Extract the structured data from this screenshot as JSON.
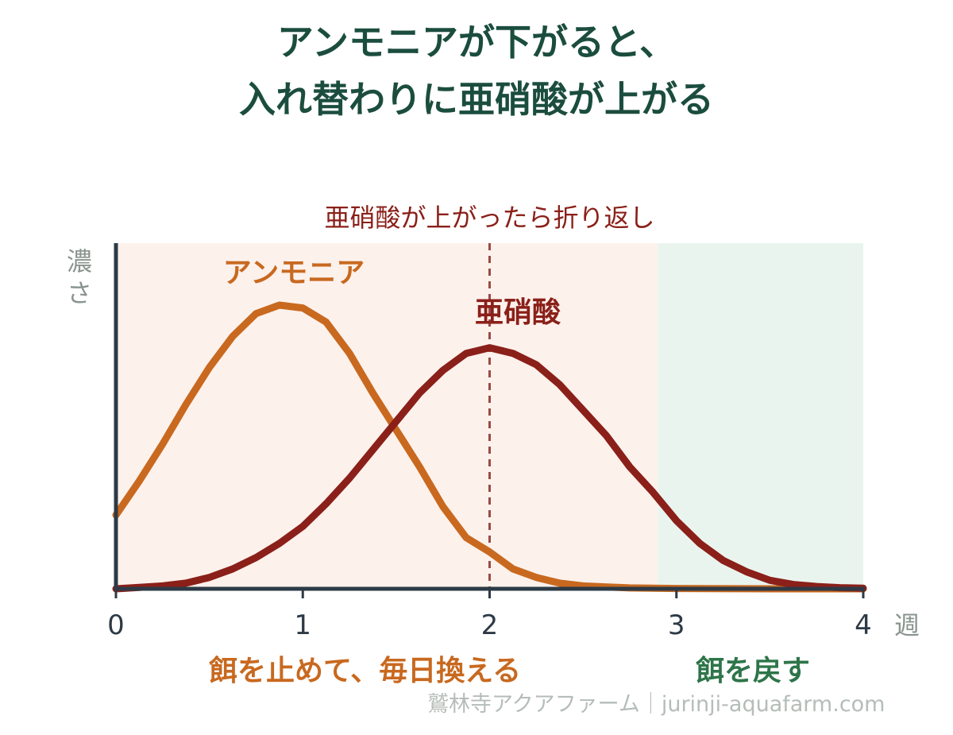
{
  "title": {
    "line1": "アンモニアが下がると、",
    "line2": "入れ替わりに亜硝酸が上がる"
  },
  "chart_data": {
    "type": "line",
    "x_unit": "週",
    "y_label": "濃さ",
    "x_ticks": [
      "0",
      "1",
      "2",
      "3",
      "4"
    ],
    "xlim": [
      0,
      4
    ],
    "ylim": [
      0,
      1
    ],
    "y_ticks_shown": false,
    "grid": false,
    "series": [
      {
        "name": "アンモニア",
        "color": "#c8691f",
        "points": [
          [
            0,
            0.26
          ],
          [
            0.125,
            0.38
          ],
          [
            0.25,
            0.51
          ],
          [
            0.375,
            0.65
          ],
          [
            0.5,
            0.78
          ],
          [
            0.625,
            0.89
          ],
          [
            0.75,
            0.97
          ],
          [
            0.875,
            1.0
          ],
          [
            1.0,
            0.99
          ],
          [
            1.125,
            0.94
          ],
          [
            1.25,
            0.83
          ],
          [
            1.375,
            0.69
          ],
          [
            1.5,
            0.56
          ],
          [
            1.625,
            0.43
          ],
          [
            1.75,
            0.29
          ],
          [
            1.875,
            0.18
          ],
          [
            2.0,
            0.13
          ],
          [
            2.125,
            0.07
          ],
          [
            2.25,
            0.04
          ],
          [
            2.375,
            0.02
          ],
          [
            2.5,
            0.01
          ],
          [
            2.75,
            0.003
          ],
          [
            3.0,
            0.001
          ],
          [
            3.5,
            0.0
          ],
          [
            4.0,
            0.0
          ]
        ]
      },
      {
        "name": "亜硝酸",
        "color": "#8a2019",
        "points": [
          [
            0,
            0.0
          ],
          [
            0.125,
            0.005
          ],
          [
            0.25,
            0.01
          ],
          [
            0.375,
            0.02
          ],
          [
            0.5,
            0.04
          ],
          [
            0.625,
            0.07
          ],
          [
            0.75,
            0.11
          ],
          [
            0.875,
            0.16
          ],
          [
            1.0,
            0.22
          ],
          [
            1.125,
            0.3
          ],
          [
            1.25,
            0.39
          ],
          [
            1.375,
            0.49
          ],
          [
            1.5,
            0.59
          ],
          [
            1.625,
            0.69
          ],
          [
            1.75,
            0.77
          ],
          [
            1.875,
            0.83
          ],
          [
            2.0,
            0.85
          ],
          [
            2.125,
            0.83
          ],
          [
            2.25,
            0.79
          ],
          [
            2.375,
            0.72
          ],
          [
            2.5,
            0.63
          ],
          [
            2.625,
            0.54
          ],
          [
            2.75,
            0.43
          ],
          [
            2.875,
            0.34
          ],
          [
            3.0,
            0.24
          ],
          [
            3.125,
            0.16
          ],
          [
            3.25,
            0.1
          ],
          [
            3.375,
            0.06
          ],
          [
            3.5,
            0.03
          ],
          [
            3.625,
            0.015
          ],
          [
            3.75,
            0.008
          ],
          [
            3.875,
            0.004
          ],
          [
            4.0,
            0.002
          ]
        ]
      }
    ],
    "regions": [
      {
        "x_start": 0,
        "x_end": 2.9,
        "color": "#fdf1ec",
        "label": "餌を止めて、毎日換える",
        "label_color": "#c8691f"
      },
      {
        "x_start": 2.9,
        "x_end": 4.0,
        "color": "#eaf4ef",
        "label": "餌を戻す",
        "label_color": "#2e7549"
      }
    ],
    "annotation": {
      "x": 2.0,
      "text": "亜硝酸が上がったら折り返し",
      "color": "#8a2019",
      "line_style": "dashed"
    }
  },
  "credit": "鷲林寺アクアファーム｜jurinji-aquafarm.com"
}
